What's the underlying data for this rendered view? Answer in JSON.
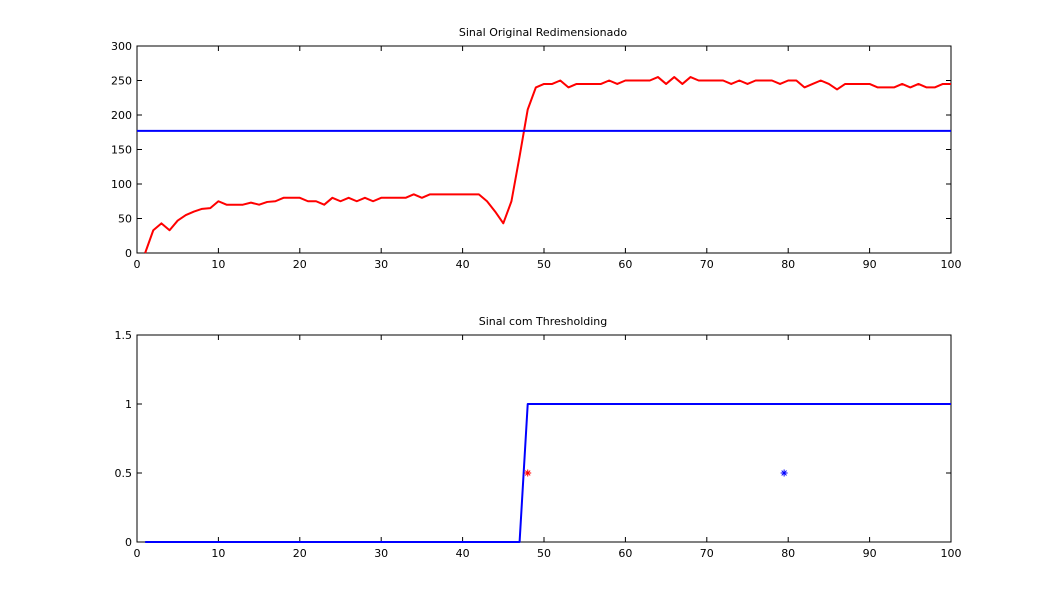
{
  "chart_data": [
    {
      "type": "line",
      "title": "Sinal Original Redimensionado",
      "xlabel": "",
      "ylabel": "",
      "xlim": [
        0,
        100
      ],
      "ylim": [
        0,
        300
      ],
      "xticks": [
        0,
        10,
        20,
        30,
        40,
        50,
        60,
        70,
        80,
        90,
        100
      ],
      "yticks": [
        0,
        50,
        100,
        150,
        200,
        250,
        300
      ],
      "grid": false,
      "series": [
        {
          "color": "#ff0000",
          "x": [
            1,
            2,
            3,
            4,
            5,
            6,
            7,
            8,
            9,
            10,
            11,
            12,
            13,
            14,
            15,
            16,
            17,
            18,
            19,
            20,
            21,
            22,
            23,
            24,
            25,
            26,
            27,
            28,
            29,
            30,
            31,
            32,
            33,
            34,
            35,
            36,
            37,
            38,
            39,
            40,
            41,
            42,
            43,
            44,
            45,
            46,
            47,
            48,
            49,
            50,
            51,
            52,
            53,
            54,
            55,
            56,
            57,
            58,
            59,
            60,
            61,
            62,
            63,
            64,
            65,
            66,
            67,
            68,
            69,
            70,
            71,
            72,
            73,
            74,
            75,
            76,
            77,
            78,
            79,
            80,
            81,
            82,
            83,
            84,
            85,
            86,
            87,
            88,
            89,
            90,
            91,
            92,
            93,
            94,
            95,
            96,
            97,
            98,
            99,
            100
          ],
          "y": [
            0,
            33,
            43,
            33,
            47,
            55,
            60,
            64,
            65,
            75,
            70,
            70,
            70,
            73,
            70,
            74,
            75,
            80,
            80,
            80,
            75,
            75,
            70,
            80,
            75,
            80,
            75,
            80,
            75,
            80,
            80,
            80,
            80,
            85,
            80,
            85,
            85,
            85,
            85,
            85,
            85,
            85,
            75,
            60,
            43,
            75,
            140,
            208,
            240,
            245,
            245,
            250,
            240,
            245,
            245,
            245,
            245,
            250,
            245,
            250,
            250,
            250,
            250,
            255,
            245,
            255,
            245,
            255,
            250,
            250,
            250,
            250,
            245,
            250,
            245,
            250,
            250,
            250,
            245,
            250,
            250,
            240,
            245,
            250,
            245,
            237,
            245,
            245,
            245,
            245,
            240,
            240,
            240,
            245,
            240,
            245,
            240,
            240,
            245,
            245
          ]
        },
        {
          "color": "#0000ff",
          "x": [
            0,
            100
          ],
          "y": [
            177,
            177
          ]
        }
      ]
    },
    {
      "type": "line",
      "title": "Sinal com Thresholding",
      "xlabel": "",
      "ylabel": "",
      "xlim": [
        0,
        100
      ],
      "ylim": [
        0,
        1.5
      ],
      "xticks": [
        0,
        10,
        20,
        30,
        40,
        50,
        60,
        70,
        80,
        90,
        100
      ],
      "yticks": [
        0,
        0.5,
        1,
        1.5
      ],
      "grid": false,
      "series": [
        {
          "color": "#0000ff",
          "x": [
            1,
            47,
            48,
            100
          ],
          "y": [
            0,
            0,
            1,
            1
          ]
        }
      ],
      "markers": [
        {
          "x": 48,
          "y": 0.5,
          "color": "#ff0000",
          "symbol": "*"
        },
        {
          "x": 79.5,
          "y": 0.5,
          "color": "#0000ff",
          "symbol": "*"
        }
      ]
    }
  ]
}
